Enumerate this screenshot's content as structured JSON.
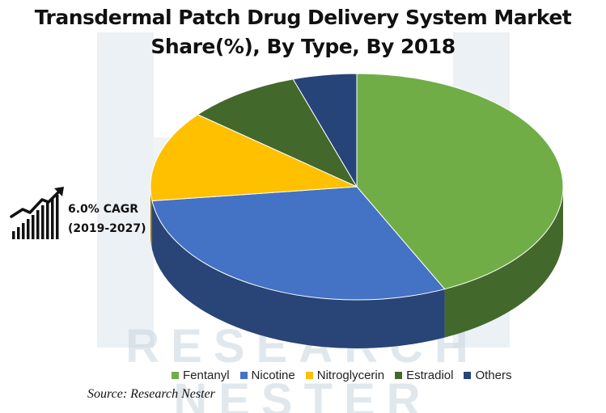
{
  "chart_data": {
    "type": "pie",
    "title_line1": "Transdermal Patch Drug Delivery System Market",
    "title_line2": "Share(%),  By Type, By 2018",
    "categories": [
      "Fentanyl",
      "Nicotine",
      "Nitroglycerin",
      "Estradiol",
      "Others"
    ],
    "values": [
      43,
      30,
      13,
      9,
      5
    ],
    "colors": [
      "#70ad47",
      "#4472c4",
      "#ffc000",
      "#43682b",
      "#264478"
    ],
    "legend_position": "bottom"
  },
  "annotation": {
    "cagr": "6.0% CAGR",
    "period": "(2019-2027)",
    "icon": "growth-chart-icon"
  },
  "source": "Source: Research Nester",
  "watermark": {
    "line1": "RESEARCH",
    "line2": "NESTER",
    "color": "#c9d6df"
  }
}
